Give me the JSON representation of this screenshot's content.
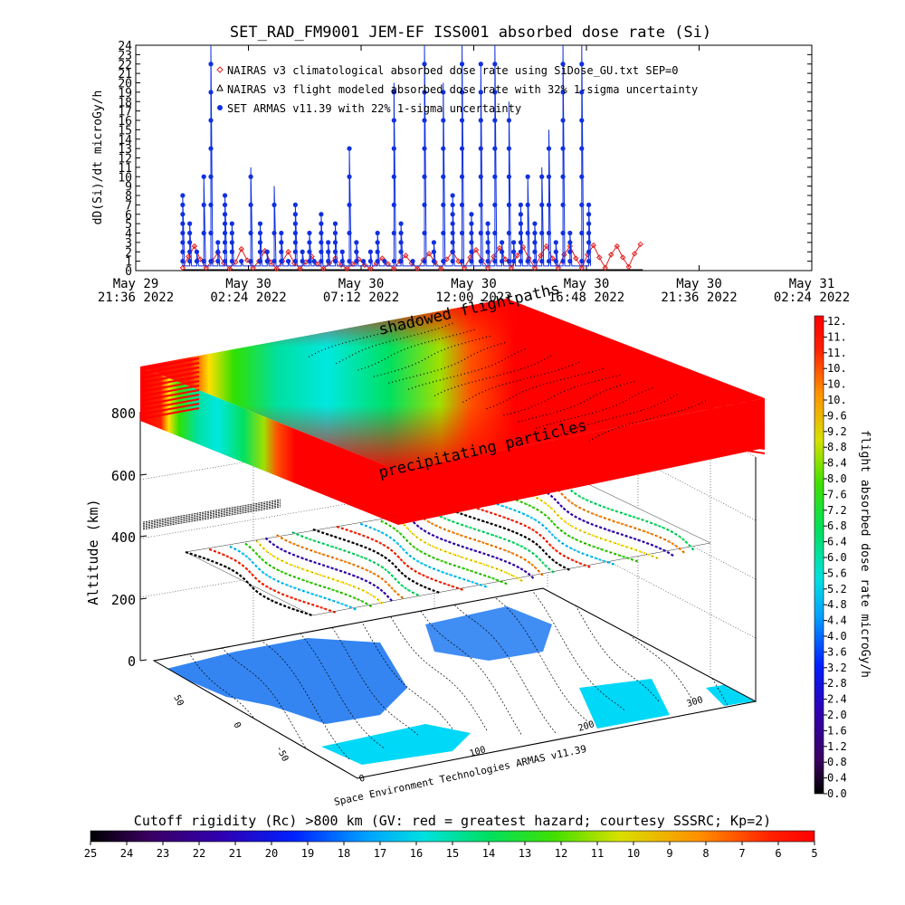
{
  "title": "SET_RAD_FM9001  JEM-EF ISS001 absorbed dose rate (Si)",
  "chart_data": [
    {
      "type": "line",
      "ylabel": "dD(Si)/dt microGy/h",
      "ylim": [
        0,
        24
      ],
      "yticks": [
        0,
        1,
        2,
        3,
        4,
        5,
        6,
        7,
        8,
        9,
        10,
        11,
        12,
        13,
        14,
        15,
        16,
        17,
        18,
        19,
        20,
        21,
        22,
        23,
        24
      ],
      "xlim": [
        "2022-05-29T21:36",
        "2022-05-31T02:24"
      ],
      "xticks": [
        {
          "line1": "May 29",
          "line2": "21:36 2022"
        },
        {
          "line1": "May 30",
          "line2": "02:24 2022"
        },
        {
          "line1": "May 30",
          "line2": "07:12 2022"
        },
        {
          "line1": "May 30",
          "line2": "12:00 2022"
        },
        {
          "line1": "May 30",
          "line2": "16:48 2022"
        },
        {
          "line1": "May 30",
          "line2": "21:36 2022"
        },
        {
          "line1": "May 31",
          "line2": "02:24 2022"
        }
      ],
      "legend": [
        {
          "label": "NAIRAS v3 climatological absorbed dose rate using SiDose_GU.txt SEP=0",
          "marker": "diamond",
          "color": "#e02020"
        },
        {
          "label": "NAIRAS v3 flight modeled absorbed dose rate with 32% 1-sigma uncertainty",
          "marker": "triangle",
          "color": "#000000"
        },
        {
          "label": "SET ARMAS v11.39 with 22% 1-sigma uncertainty",
          "marker": "dot",
          "color": "#1030e0"
        }
      ],
      "series": [
        {
          "name": "SET ARMAS v11.39 with 22% 1-sigma uncertainty",
          "color": "#1030e0",
          "hours": [
            2.0,
            2.3,
            2.6,
            2.9,
            3.2,
            3.5,
            3.8,
            4.1,
            4.5,
            4.9,
            5.3,
            5.6,
            5.9,
            6.2,
            6.5,
            6.8,
            7.1,
            7.4,
            7.6,
            7.9,
            8.2,
            8.5,
            8.8,
            9.1,
            9.4,
            9.7,
            10.0,
            10.3,
            10.6,
            11.0,
            11.3,
            11.8,
            12.3,
            12.7,
            13.1,
            13.5,
            13.9,
            14.3,
            14.7,
            15.0,
            15.3,
            15.6,
            15.9,
            16.1,
            16.4,
            16.7,
            17.0,
            17.3,
            17.6,
            17.9,
            18.2,
            18.5,
            19.0,
            19.3
          ],
          "values": [
            8,
            5,
            2,
            10,
            24,
            3,
            8,
            5,
            1,
            11,
            5,
            2,
            9,
            4,
            1,
            7,
            2,
            4,
            1,
            6,
            3,
            5,
            2,
            13,
            3,
            1,
            2,
            4,
            1,
            20,
            5,
            1,
            24,
            3,
            20,
            8,
            24,
            6,
            22,
            5,
            24,
            3,
            18,
            3,
            7,
            10,
            5,
            11,
            15,
            3,
            24,
            4,
            24,
            7
          ]
        },
        {
          "name": "NAIRAS v3 climatological absorbed dose rate using SiDose_GU.txt SEP=0",
          "color": "#e02020",
          "hours": [
            2.0,
            2.25,
            2.5,
            2.75,
            3.0,
            3.25,
            3.5,
            3.75,
            4.0,
            4.25,
            4.5,
            4.75,
            5.0,
            5.25,
            5.5,
            5.75,
            6.0,
            6.25,
            6.5,
            6.75,
            7.0,
            7.25,
            7.5,
            7.75,
            8.0,
            8.25,
            8.5,
            8.75,
            9.0,
            9.25,
            9.5,
            9.75,
            10.0,
            10.25,
            10.5,
            10.75,
            11.0,
            11.25,
            11.5,
            11.75,
            12.0,
            12.25,
            12.5,
            12.75,
            13.0,
            13.25,
            13.5,
            13.75,
            14.0,
            14.25,
            14.5,
            14.75,
            15.0,
            15.25,
            15.5,
            15.75,
            16.0,
            16.25,
            16.5,
            16.75,
            17.0,
            17.25,
            17.5,
            17.75,
            18.0,
            18.25,
            18.5,
            18.75,
            19.0,
            19.25,
            19.5,
            19.75,
            20.0,
            20.25,
            20.5,
            20.75,
            21.0,
            21.25,
            21.5
          ],
          "values": [
            0.3,
            1.5,
            2.6,
            1.2,
            0.3,
            1.0,
            1.9,
            0.8,
            0.2,
            0.9,
            2.3,
            1.1,
            0.3,
            1.0,
            2.1,
            0.9,
            0.2,
            1.0,
            2.0,
            0.8,
            0.2,
            0.9,
            1.5,
            0.7,
            0.2,
            0.8,
            1.3,
            0.6,
            0.2,
            0.7,
            1.2,
            0.6,
            0.2,
            0.8,
            1.3,
            0.7,
            0.2,
            1.0,
            1.6,
            0.8,
            0.2,
            1.1,
            1.8,
            0.9,
            0.2,
            1.2,
            2.0,
            1.0,
            0.3,
            1.4,
            2.2,
            1.1,
            0.3,
            1.5,
            2.4,
            1.2,
            0.3,
            1.6,
            2.5,
            1.3,
            0.3,
            1.6,
            2.6,
            1.3,
            0.3,
            1.7,
            2.6,
            1.3,
            0.3,
            1.7,
            2.7,
            1.4,
            0.3,
            1.7,
            2.6,
            1.4,
            0.4,
            1.8,
            2.8
          ]
        },
        {
          "name": "NAIRAS v3 flight modeled absorbed dose rate with 32% 1-sigma uncertainty",
          "color": "#000000",
          "hours": [
            2.0,
            21.6
          ],
          "values": [
            0.05,
            0.05
          ]
        }
      ]
    },
    {
      "type": "heatmap",
      "ylabel": "Altitude (km)",
      "yticks": [
        "0",
        "200",
        "400",
        "600",
        "800"
      ],
      "lat_ticks": [
        "50",
        "0",
        "-50"
      ],
      "lon_ticks": [
        "0",
        "100",
        "200",
        "300"
      ],
      "annotations": [
        "shadowed flightpaths",
        "precipitating particles"
      ],
      "credit": "Space Environment Technologies ARMAS v11.39"
    },
    {
      "type": "heatmap",
      "colorbar": "flight absorbed dose rate microGy/h",
      "ticks": [
        "12.",
        "11.",
        "11.",
        "10.",
        "10.",
        "10.",
        "9.6",
        "9.2",
        "8.8",
        "8.4",
        "8.0",
        "7.6",
        "7.2",
        "6.8",
        "6.4",
        "6.0",
        "5.6",
        "5.2",
        "4.8",
        "4.4",
        "4.0",
        "3.6",
        "3.2",
        "2.8",
        "2.4",
        "2.0",
        "1.6",
        "1.2",
        "0.8",
        "0.4",
        "0.0"
      ]
    },
    {
      "type": "heatmap",
      "colorbar": "Cutoff rigidity (Rc) >800 km (GV: red = greatest hazard; courtesy SSSRC; Kp=2)",
      "ticks": [
        "25",
        "24",
        "23",
        "22",
        "21",
        "20",
        "19",
        "18",
        "17",
        "16",
        "15",
        "14",
        "13",
        "12",
        "11",
        "10",
        "9",
        "8",
        "7",
        "6",
        "5"
      ]
    }
  ]
}
